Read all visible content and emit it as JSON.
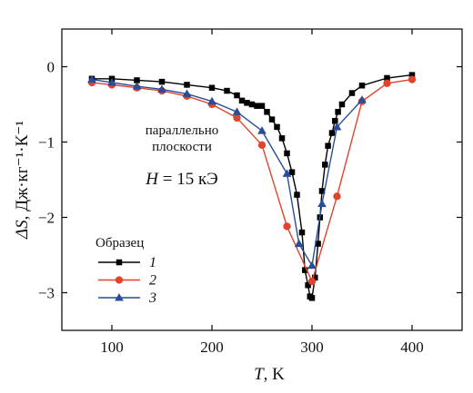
{
  "chart_data": {
    "type": "line",
    "xlabel_var": "T",
    "xlabel_unit": ", K",
    "ylabel_var": "ΔS",
    "ylabel_unit": ", Дж·кг⁻¹·К⁻¹",
    "xlim": [
      50,
      450
    ],
    "ylim": [
      -3.5,
      0.5
    ],
    "x_ticks": [
      100,
      200,
      300,
      400
    ],
    "x_tick_labels": [
      "100",
      "200",
      "300",
      "400"
    ],
    "y_ticks": [
      0,
      -1,
      -2,
      -3
    ],
    "y_tick_labels": [
      "0",
      "−1",
      "−2",
      "−3"
    ],
    "annotations": {
      "orientation_line1": "параллельно",
      "orientation_line2": "плоскости",
      "field_var": "H",
      "field_value": " = 15 кЭ"
    },
    "legend": {
      "title": "Образец",
      "position": "bottom-left"
    },
    "series": [
      {
        "name": "1",
        "color": "#000000",
        "marker": "square",
        "points": [
          [
            80,
            -0.16
          ],
          [
            100,
            -0.16
          ],
          [
            125,
            -0.18
          ],
          [
            150,
            -0.2
          ],
          [
            175,
            -0.24
          ],
          [
            200,
            -0.28
          ],
          [
            215,
            -0.32
          ],
          [
            225,
            -0.38
          ],
          [
            230,
            -0.45
          ],
          [
            235,
            -0.48
          ],
          [
            240,
            -0.5
          ],
          [
            245,
            -0.52
          ],
          [
            250,
            -0.52
          ],
          [
            255,
            -0.6
          ],
          [
            260,
            -0.7
          ],
          [
            265,
            -0.8
          ],
          [
            270,
            -0.95
          ],
          [
            275,
            -1.15
          ],
          [
            280,
            -1.4
          ],
          [
            285,
            -1.7
          ],
          [
            290,
            -2.2
          ],
          [
            293,
            -2.7
          ],
          [
            296,
            -2.9
          ],
          [
            298,
            -3.05
          ],
          [
            300,
            -3.07
          ],
          [
            303,
            -2.8
          ],
          [
            306,
            -2.35
          ],
          [
            308,
            -2.0
          ],
          [
            310,
            -1.65
          ],
          [
            313,
            -1.3
          ],
          [
            316,
            -1.05
          ],
          [
            320,
            -0.88
          ],
          [
            323,
            -0.72
          ],
          [
            326,
            -0.6
          ],
          [
            330,
            -0.5
          ],
          [
            340,
            -0.35
          ],
          [
            350,
            -0.25
          ],
          [
            375,
            -0.15
          ],
          [
            400,
            -0.11
          ]
        ]
      },
      {
        "name": "2",
        "color": "#e0442d",
        "marker": "circle",
        "points": [
          [
            80,
            -0.21
          ],
          [
            100,
            -0.24
          ],
          [
            125,
            -0.28
          ],
          [
            150,
            -0.32
          ],
          [
            175,
            -0.39
          ],
          [
            200,
            -0.5
          ],
          [
            225,
            -0.68
          ],
          [
            250,
            -1.04
          ],
          [
            275,
            -2.12
          ],
          [
            300,
            -2.85
          ],
          [
            325,
            -1.72
          ],
          [
            350,
            -0.46
          ],
          [
            375,
            -0.22
          ],
          [
            400,
            -0.17
          ]
        ]
      },
      {
        "name": "3",
        "color": "#2a4d9a",
        "marker": "triangle",
        "points": [
          [
            80,
            -0.17
          ],
          [
            100,
            -0.21
          ],
          [
            125,
            -0.26
          ],
          [
            150,
            -0.3
          ],
          [
            175,
            -0.36
          ],
          [
            200,
            -0.46
          ],
          [
            225,
            -0.6
          ],
          [
            250,
            -0.85
          ],
          [
            275,
            -1.42
          ],
          [
            287,
            -2.35
          ],
          [
            300,
            -2.64
          ],
          [
            310,
            -1.82
          ],
          [
            325,
            -0.8
          ],
          [
            350,
            -0.44
          ]
        ]
      }
    ]
  }
}
